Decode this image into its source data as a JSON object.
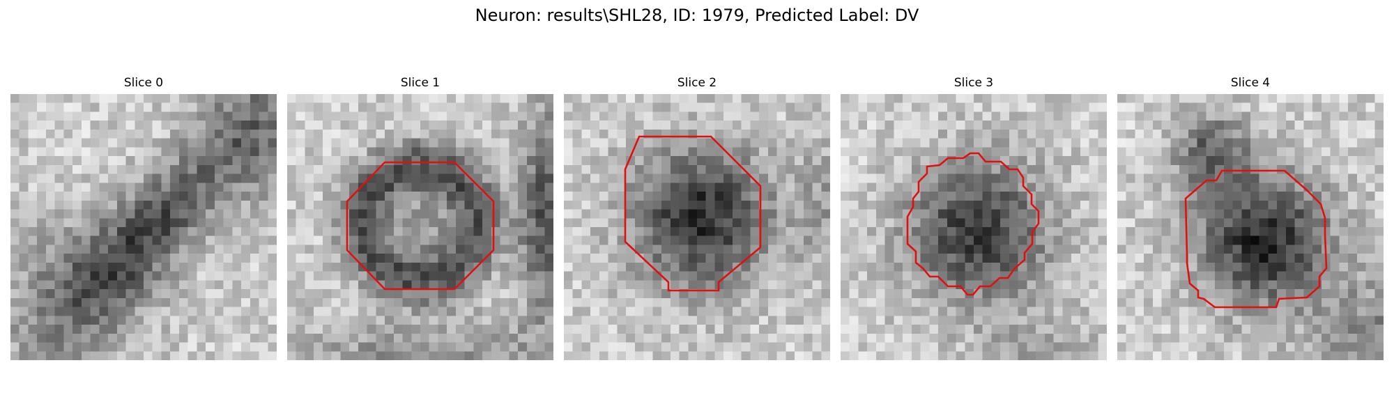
{
  "figure": {
    "title": "Neuron: results\\SHL28, ID: 1979, Predicted Label: DV",
    "contour_color": "#e01010"
  },
  "panels": [
    {
      "title": "Slice 0",
      "has_contour": false
    },
    {
      "title": "Slice 1",
      "has_contour": true
    },
    {
      "title": "Slice 2",
      "has_contour": true
    },
    {
      "title": "Slice 3",
      "has_contour": true
    },
    {
      "title": "Slice 4",
      "has_contour": true
    }
  ]
}
